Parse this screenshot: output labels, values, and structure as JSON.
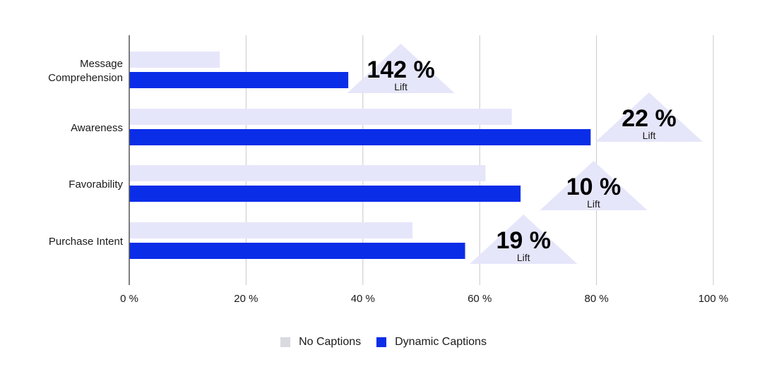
{
  "chart_data": {
    "type": "bar",
    "orientation": "horizontal",
    "categories": [
      "Message Comprehension",
      "Awareness",
      "Favorability",
      "Purchase Intent"
    ],
    "category_label_lines": [
      [
        "Message",
        "Comprehension"
      ],
      [
        "Awareness"
      ],
      [
        "Favorability"
      ],
      [
        "Purchase Intent"
      ]
    ],
    "series": [
      {
        "name": "No Captions",
        "values": [
          15.5,
          65.5,
          61,
          48.5
        ],
        "color": "#e6e6fa"
      },
      {
        "name": "Dynamic Captions",
        "values": [
          37.5,
          79,
          67,
          57.5
        ],
        "color": "#0a2de8"
      }
    ],
    "xlim": [
      0,
      100
    ],
    "xticks": [
      0,
      20,
      40,
      60,
      80,
      100
    ],
    "xtick_labels": [
      "0 %",
      "20 %",
      "40 %",
      "60 %",
      "80 %",
      "100 %"
    ],
    "grid": "vertical",
    "legend": "bottom-center",
    "annotations": [
      {
        "category": "Message Comprehension",
        "value": "142 %",
        "label": "Lift",
        "center": 46.5
      },
      {
        "category": "Awareness",
        "value": "22 %",
        "label": "Lift",
        "center": 89
      },
      {
        "category": "Favorability",
        "value": "10 %",
        "label": "Lift",
        "center": 79.5
      },
      {
        "category": "Purchase Intent",
        "value": "19 %",
        "label": "Lift",
        "center": 67.5
      }
    ],
    "annotation_color": "#e6e6fa"
  }
}
